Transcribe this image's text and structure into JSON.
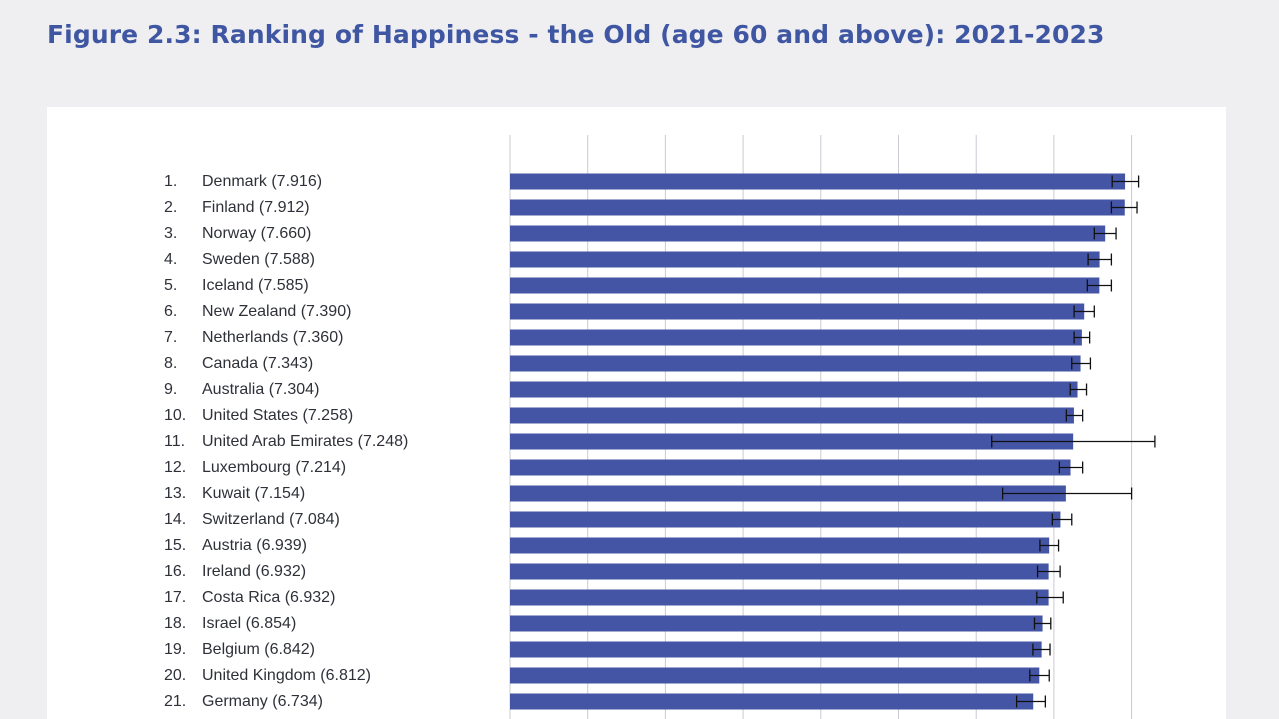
{
  "figure": {
    "title": "Figure 2.3: Ranking of Happiness - the Old (age 60 and above): 2021-2023"
  },
  "colors": {
    "background": "#efeff2",
    "panel": "#ffffff",
    "title": "#3f56a3",
    "bar": "#4555a6",
    "error_bar": "#111111",
    "grid": "#c9cbd3"
  },
  "chart_data": {
    "type": "bar",
    "orientation": "horizontal",
    "grid": true,
    "categories": [
      "Denmark",
      "Finland",
      "Norway",
      "Sweden",
      "Iceland",
      "New Zealand",
      "Netherlands",
      "Canada",
      "Australia",
      "United States",
      "United Arab Emirates",
      "Luxembourg",
      "Kuwait",
      "Switzerland",
      "Austria",
      "Ireland",
      "Costa Rica",
      "Israel",
      "Belgium",
      "United Kingdom",
      "Germany"
    ],
    "labels": [
      "Denmark (7.916)",
      "Finland (7.912)",
      "Norway (7.660)",
      "Sweden (7.588)",
      "Iceland (7.585)",
      "New Zealand (7.390)",
      "Netherlands (7.360)",
      "Canada (7.343)",
      "Australia (7.304)",
      "United States (7.258)",
      "United Arab Emirates (7.248)",
      "Luxembourg (7.214)",
      "Kuwait (7.154)",
      "Switzerland (7.084)",
      "Austria (6.939)",
      "Ireland (6.932)",
      "Costa Rica (6.932)",
      "Israel (6.854)",
      "Belgium (6.842)",
      "United Kingdom (6.812)",
      "Germany (6.734)"
    ],
    "ranks": [
      "1.",
      "2.",
      "3.",
      "4.",
      "5.",
      "6.",
      "7.",
      "8.",
      "9.",
      "10.",
      "11.",
      "12.",
      "13.",
      "14.",
      "15.",
      "16.",
      "17.",
      "18.",
      "19.",
      "20.",
      "21."
    ],
    "values": [
      7.916,
      7.912,
      7.66,
      7.588,
      7.585,
      7.39,
      7.36,
      7.343,
      7.304,
      7.258,
      7.248,
      7.214,
      7.154,
      7.084,
      6.939,
      6.932,
      6.932,
      6.854,
      6.842,
      6.812,
      6.734
    ],
    "error_low": [
      7.75,
      7.74,
      7.52,
      7.44,
      7.43,
      7.26,
      7.26,
      7.23,
      7.21,
      7.16,
      6.2,
      7.07,
      6.34,
      6.98,
      6.82,
      6.79,
      6.78,
      6.75,
      6.73,
      6.69,
      6.52
    ],
    "error_high": [
      8.09,
      8.07,
      7.8,
      7.74,
      7.74,
      7.52,
      7.46,
      7.47,
      7.42,
      7.37,
      8.3,
      7.37,
      8.0,
      7.23,
      7.06,
      7.08,
      7.12,
      6.96,
      6.95,
      6.94,
      6.89
    ],
    "xlim": [
      0,
      8.5
    ],
    "x_gridlines": [
      0,
      1,
      2,
      3,
      4,
      5,
      6,
      7,
      8
    ]
  }
}
